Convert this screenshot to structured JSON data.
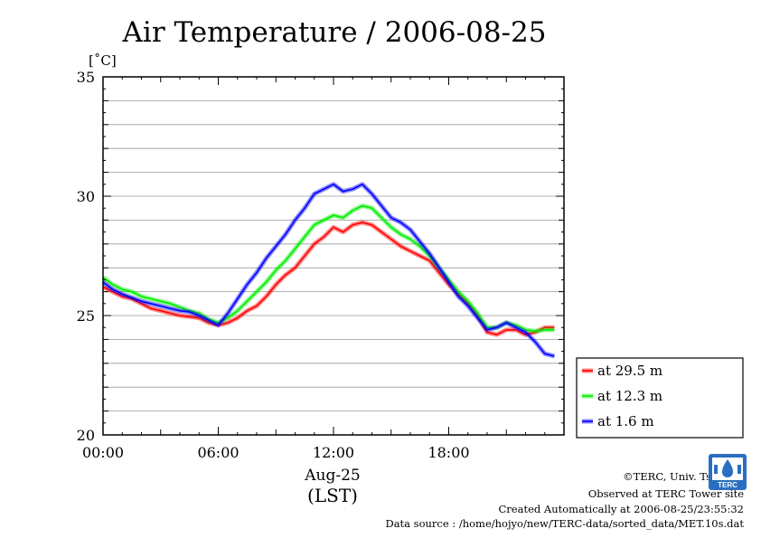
{
  "chart_data": {
    "type": "line",
    "title": "Air Temperature / 2006-08-25",
    "ylabel": "[˚C]",
    "xlabel": "Aug-25",
    "xlabel2": "(LST)",
    "ylim": [
      20,
      35
    ],
    "xlim": [
      0,
      24
    ],
    "y_ticks": [
      20,
      25,
      30,
      35
    ],
    "y_tick_labels": [
      "20",
      "25",
      "30",
      "35"
    ],
    "x_ticks": [
      0,
      6,
      12,
      18
    ],
    "x_tick_labels": [
      "00:00",
      "06:00",
      "12:00",
      "18:00"
    ],
    "grid": "horizontal",
    "legend_position": "right",
    "x_hours": [
      0,
      0.5,
      1,
      1.5,
      2,
      2.5,
      3,
      3.5,
      4,
      4.5,
      5,
      5.5,
      6,
      6.5,
      7,
      7.5,
      8,
      8.5,
      9,
      9.5,
      10,
      10.5,
      11,
      11.5,
      12,
      12.5,
      13,
      13.5,
      14,
      14.5,
      15,
      15.5,
      16,
      16.5,
      17,
      17.5,
      18,
      18.5,
      19,
      19.5,
      20,
      20.5,
      21,
      21.5,
      22,
      22.5,
      23,
      23.5
    ],
    "series": [
      {
        "name": "at 29.5 m",
        "color": "#ff0000",
        "values": [
          26.2,
          26.0,
          25.8,
          25.7,
          25.5,
          25.3,
          25.2,
          25.1,
          25.0,
          24.95,
          24.9,
          24.7,
          24.6,
          24.7,
          24.9,
          25.2,
          25.4,
          25.8,
          26.3,
          26.7,
          27.0,
          27.5,
          28.0,
          28.3,
          28.7,
          28.5,
          28.8,
          28.9,
          28.8,
          28.5,
          28.2,
          27.9,
          27.7,
          27.5,
          27.3,
          26.8,
          26.3,
          25.9,
          25.5,
          25.0,
          24.3,
          24.2,
          24.4,
          24.4,
          24.2,
          24.3,
          24.5,
          24.5
        ]
      },
      {
        "name": "at 12.3 m",
        "color": "#00ee00",
        "values": [
          26.6,
          26.3,
          26.1,
          26.0,
          25.8,
          25.7,
          25.6,
          25.5,
          25.35,
          25.2,
          25.1,
          24.85,
          24.7,
          24.9,
          25.2,
          25.6,
          26.0,
          26.4,
          26.9,
          27.3,
          27.8,
          28.3,
          28.8,
          29.0,
          29.2,
          29.1,
          29.4,
          29.6,
          29.5,
          29.1,
          28.7,
          28.4,
          28.2,
          27.9,
          27.5,
          27.0,
          26.5,
          26.0,
          25.6,
          25.1,
          24.5,
          24.5,
          24.7,
          24.6,
          24.4,
          24.35,
          24.4,
          24.4
        ]
      },
      {
        "name": "at 1.6 m",
        "color": "#0000ff",
        "values": [
          26.4,
          26.1,
          25.9,
          25.75,
          25.6,
          25.5,
          25.4,
          25.3,
          25.2,
          25.15,
          25.0,
          24.8,
          24.6,
          25.1,
          25.7,
          26.3,
          26.8,
          27.4,
          27.9,
          28.4,
          29.0,
          29.5,
          30.1,
          30.3,
          30.5,
          30.2,
          30.3,
          30.5,
          30.1,
          29.6,
          29.1,
          28.9,
          28.6,
          28.1,
          27.6,
          27.0,
          26.4,
          25.8,
          25.4,
          24.9,
          24.4,
          24.5,
          24.7,
          24.5,
          24.3,
          23.9,
          23.4,
          23.3
        ]
      }
    ]
  },
  "credits": {
    "copyright": "©TERC, Univ. Tsukuba",
    "observed": "Observed at TERC Tower site",
    "created": "Created Automatically at 2006-08-25/23:55:32",
    "source": "Data source : /home/hojyo/new/TERC-data/sorted_data/MET.10s.dat",
    "logo_text": "TERC"
  }
}
